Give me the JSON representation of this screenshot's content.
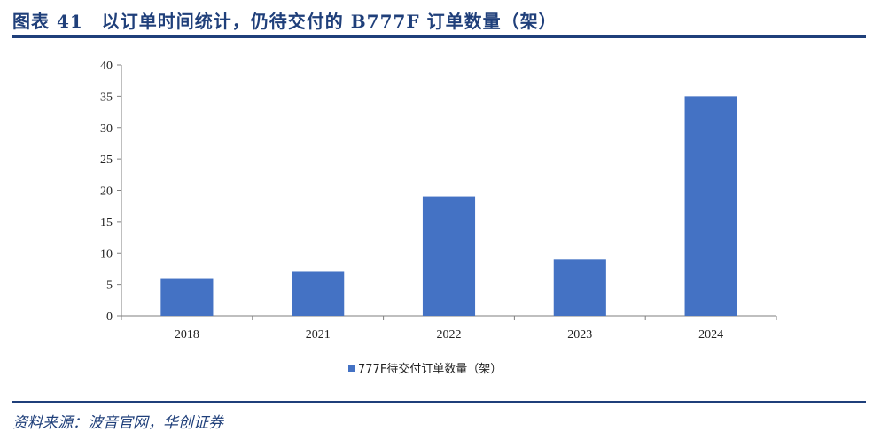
{
  "title": "图表 41　以订单时间统计，仍待交付的 B777F 订单数量（架）",
  "source": "资料来源：波音官网，华创证券",
  "chart_data": {
    "type": "bar",
    "categories": [
      "2018",
      "2021",
      "2022",
      "2023",
      "2024"
    ],
    "series": [
      {
        "name": "777F待交付订单数量（架）",
        "values": [
          6,
          7,
          19,
          9,
          35
        ],
        "color": "#4472c4"
      }
    ],
    "ylim": [
      0,
      40
    ],
    "yticks": [
      0,
      5,
      10,
      15,
      20,
      25,
      30,
      35,
      40
    ],
    "grid": false,
    "legend": "bottom"
  }
}
